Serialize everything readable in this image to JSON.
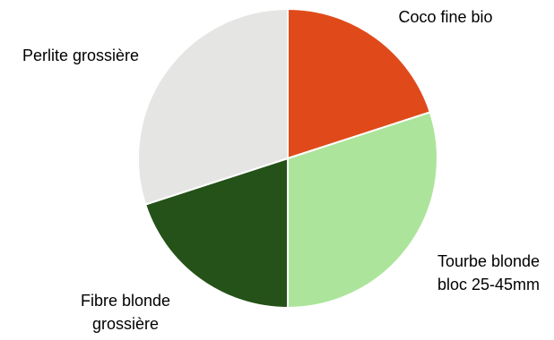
{
  "chart_data": {
    "type": "pie",
    "title": "",
    "start_angle_deg": 0,
    "direction": "clockwise",
    "legend": "none",
    "slices": [
      {
        "label_lines": [
          "Coco fine bio"
        ],
        "value": 20,
        "color": "#E04A1A"
      },
      {
        "label_lines": [
          "Tourbe blonde",
          "bloc 25-45mm"
        ],
        "value": 30,
        "color": "#ADE49C"
      },
      {
        "label_lines": [
          "Fibre blonde",
          "grossière"
        ],
        "value": 20,
        "color": "#245218"
      },
      {
        "label_lines": [
          "Perlite grossière"
        ],
        "value": 30,
        "color": "#E5E6E4"
      }
    ]
  }
}
